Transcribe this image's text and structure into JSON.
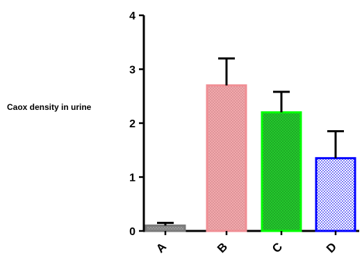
{
  "chart_data": {
    "type": "bar",
    "title": "",
    "xlabel": "",
    "ylabel": "Caox density in urine",
    "categories": [
      "A",
      "B",
      "C",
      "D"
    ],
    "values": [
      0.1,
      2.7,
      2.2,
      1.35
    ],
    "error_upper": [
      0.05,
      0.5,
      0.38,
      0.5
    ],
    "ylim": [
      0,
      4
    ],
    "yticks": [
      "0",
      "1",
      "2",
      "3",
      "4"
    ],
    "grid": false,
    "colors": {
      "A": {
        "fill": "#9a9a9a",
        "edge": "#7a7a7a",
        "pattern": "#6e6e6e"
      },
      "B": {
        "fill": "#f3a9ac",
        "edge": "#f08e94",
        "pattern": "#c98388"
      },
      "C": {
        "fill": "#24c92d",
        "edge": "#00ff00",
        "pattern": "#1a8f20"
      },
      "D": {
        "fill": "#ffffff",
        "edge": "#0000ff",
        "pattern": "#1010f0"
      }
    }
  }
}
